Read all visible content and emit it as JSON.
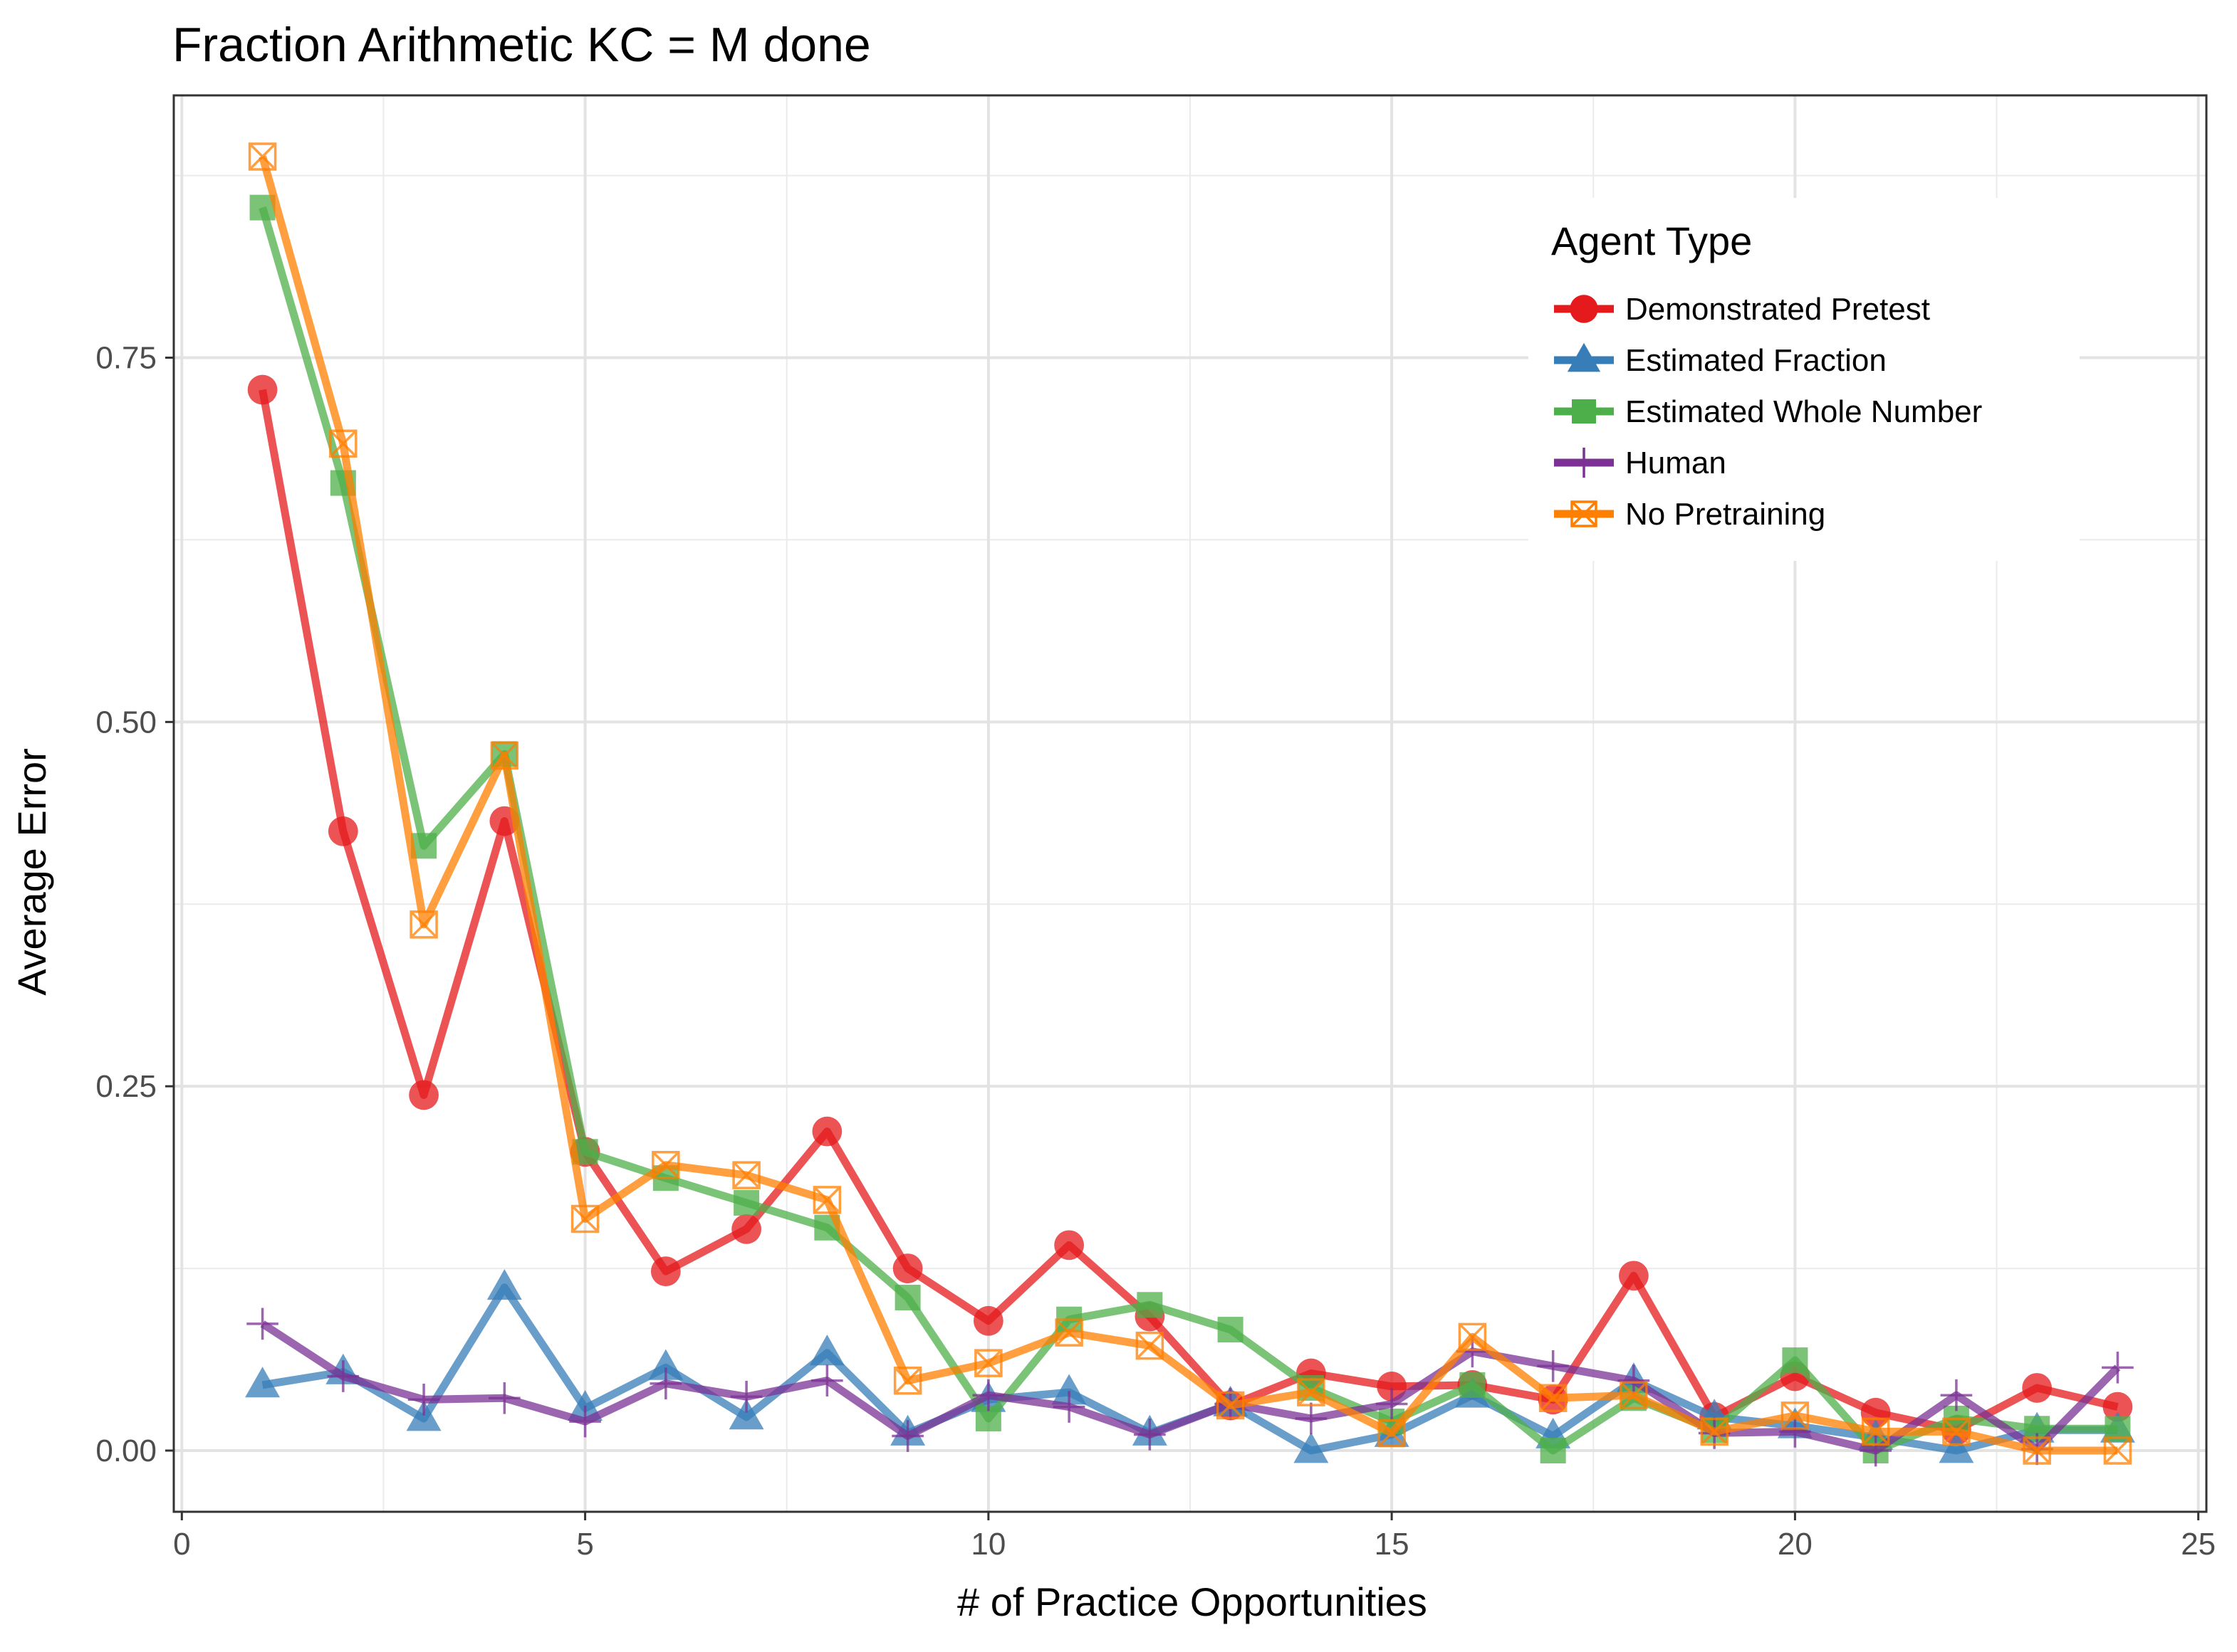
{
  "chart_data": {
    "type": "line",
    "title": "Fraction Arithmetic KC =  M done",
    "xlabel": "# of Practice Opportunities",
    "ylabel": "Average Error",
    "xlim": [
      -0.1,
      25.1
    ],
    "ylim": [
      -0.042,
      0.93
    ],
    "x_ticks": [
      0,
      5,
      10,
      15,
      20,
      25
    ],
    "y_ticks": [
      0.0,
      0.25,
      0.5,
      0.75
    ],
    "y_tick_labels": [
      "0.00",
      "0.25",
      "0.50",
      "0.75"
    ],
    "grid": true,
    "legend": {
      "title": "Agent Type",
      "position": "top-right"
    },
    "x": [
      1,
      2,
      3,
      4,
      5,
      6,
      7,
      8,
      9,
      10,
      11,
      12,
      13,
      14,
      15,
      16,
      17,
      18,
      19,
      20,
      21,
      22,
      23,
      24
    ],
    "series": [
      {
        "name": "Demonstrated Pretest",
        "color": "#E41A1C",
        "marker": "circle",
        "values": [
          0.728,
          0.425,
          0.244,
          0.432,
          0.205,
          0.123,
          0.152,
          0.219,
          0.125,
          0.089,
          0.141,
          0.092,
          0.031,
          0.053,
          0.044,
          0.045,
          0.035,
          0.12,
          0.023,
          0.051,
          0.026,
          0.014,
          0.043,
          0.03
        ]
      },
      {
        "name": "Estimated Fraction",
        "color": "#377EB8",
        "marker": "triangle",
        "values": [
          0.045,
          0.054,
          0.022,
          0.112,
          0.029,
          0.057,
          0.023,
          0.067,
          0.012,
          0.035,
          0.04,
          0.012,
          0.032,
          0.0,
          0.011,
          0.038,
          0.01,
          0.048,
          0.023,
          0.017,
          0.009,
          0.0,
          0.014,
          0.014
        ]
      },
      {
        "name": "Estimated Whole Number",
        "color": "#4DAF4A",
        "marker": "square",
        "values": [
          0.853,
          0.664,
          0.415,
          0.478,
          0.205,
          0.187,
          0.17,
          0.153,
          0.105,
          0.022,
          0.09,
          0.1,
          0.083,
          0.043,
          0.02,
          0.045,
          0.0,
          0.036,
          0.014,
          0.062,
          0.0,
          0.022,
          0.015,
          0.015
        ]
      },
      {
        "name": "Human",
        "color": "#7B3294",
        "marker": "plus",
        "values": [
          0.087,
          0.051,
          0.035,
          0.036,
          0.02,
          0.046,
          0.037,
          0.048,
          0.01,
          0.038,
          0.03,
          0.011,
          0.032,
          0.022,
          0.032,
          0.068,
          0.058,
          0.048,
          0.012,
          0.013,
          0.0,
          0.038,
          0.001,
          0.057
        ]
      },
      {
        "name": "No Pretraining",
        "color": "#FF7F00",
        "marker": "square-x",
        "values": [
          0.888,
          0.691,
          0.361,
          0.477,
          0.159,
          0.196,
          0.189,
          0.172,
          0.048,
          0.06,
          0.081,
          0.072,
          0.031,
          0.04,
          0.012,
          0.078,
          0.036,
          0.038,
          0.013,
          0.024,
          0.013,
          0.013,
          0.0,
          0.0
        ]
      }
    ]
  }
}
